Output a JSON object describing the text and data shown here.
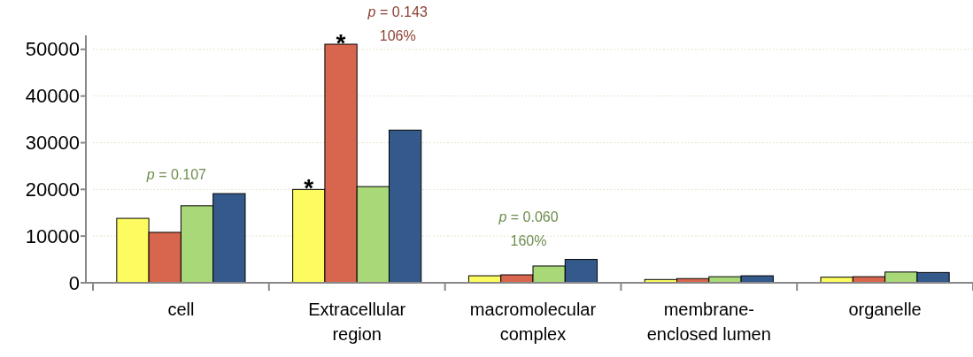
{
  "chart_data": {
    "type": "bar",
    "categories": [
      "cell",
      "Extracellular region",
      "macromolecular complex",
      "membrane-enclosed lumen",
      "organelle"
    ],
    "series": [
      {
        "color": "#fcfc60",
        "values": [
          13800,
          20000,
          1500,
          700,
          1200
        ]
      },
      {
        "color": "#d8664e",
        "values": [
          10800,
          51100,
          1700,
          900,
          1300
        ]
      },
      {
        "color": "#a8d878",
        "values": [
          16500,
          20600,
          3600,
          1300,
          2300
        ]
      },
      {
        "color": "#345a8c",
        "values": [
          19100,
          32700,
          5000,
          1500,
          2200
        ]
      }
    ],
    "ylim": [
      0,
      53000
    ],
    "yticks": [
      0,
      10000,
      20000,
      30000,
      40000,
      50000
    ],
    "grid": "y",
    "annotations": [
      {
        "text": "p = 0.107",
        "x": "cell",
        "y": 16500
      },
      {
        "text": "*",
        "x": "Extracellular region",
        "y": 20000
      },
      {
        "text": "*",
        "x": "Extracellular region",
        "y": 51100
      },
      {
        "text": "p = 0.143\n106%",
        "x": "Extracellular region",
        "y": 51100
      },
      {
        "text": "p = 0.060\n160%",
        "x": "macromolecular complex",
        "y": 3600
      }
    ]
  }
}
